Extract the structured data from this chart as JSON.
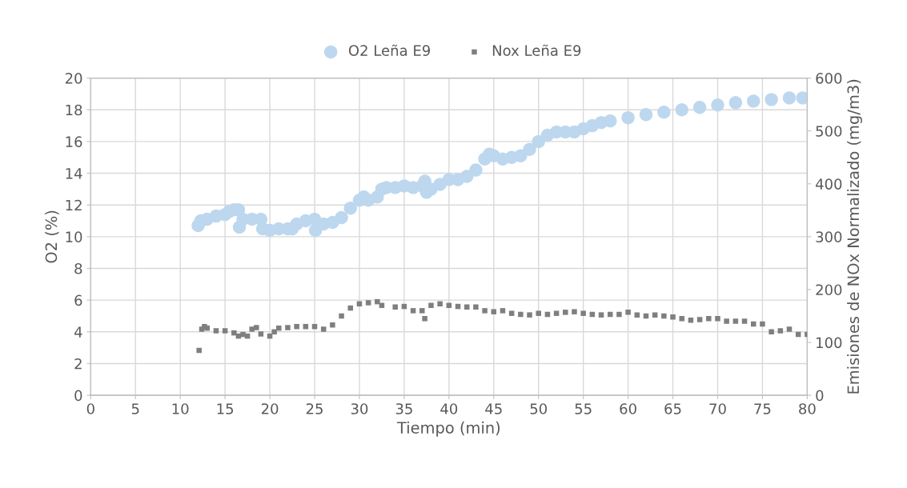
{
  "chart_data": {
    "type": "scatter",
    "xlabel": "Tiempo (min)",
    "ylabel": "O2 (%)",
    "y2label": "Emisiones de NOx Normalizado (mg/m3)",
    "xlim": [
      0,
      80
    ],
    "xticks": [
      0,
      5,
      10,
      15,
      20,
      25,
      30,
      35,
      40,
      45,
      50,
      55,
      60,
      65,
      70,
      75,
      80
    ],
    "ylim": [
      0,
      20
    ],
    "yticks": [
      0,
      2,
      4,
      6,
      8,
      10,
      12,
      14,
      16,
      18,
      20
    ],
    "y2lim": [
      0,
      600
    ],
    "y2ticks": [
      0,
      100,
      200,
      300,
      400,
      500,
      600
    ],
    "grid": true,
    "legend": "top",
    "series": [
      {
        "name": "O2 Leña E9",
        "color": "#bdd7ee",
        "marker": "circle",
        "x": [
          12.0,
          12.3,
          13,
          14,
          15,
          15.5,
          16,
          16.5,
          16.6,
          17,
          18,
          19,
          19.2,
          20,
          21,
          22,
          22.5,
          23,
          24,
          25,
          25.1,
          26,
          27,
          28,
          29,
          30,
          30.5,
          31,
          32,
          32.5,
          33,
          34,
          35,
          36,
          37,
          37.3,
          37.5,
          38,
          39,
          40,
          41,
          42,
          43,
          44,
          44.5,
          45,
          46,
          47,
          48,
          49,
          50,
          51,
          52,
          53,
          54,
          55,
          56,
          57,
          58,
          60,
          62,
          64,
          66,
          68,
          70,
          72,
          74,
          76,
          78,
          79.5
        ],
        "values": [
          10.7,
          11.0,
          11.1,
          11.3,
          11.4,
          11.6,
          11.7,
          11.7,
          10.6,
          11.1,
          11.1,
          11.1,
          10.5,
          10.4,
          10.5,
          10.5,
          10.5,
          10.8,
          11.0,
          11.1,
          10.4,
          10.8,
          10.9,
          11.2,
          11.8,
          12.3,
          12.5,
          12.3,
          12.5,
          13.0,
          13.1,
          13.1,
          13.2,
          13.1,
          13.2,
          13.5,
          12.8,
          13.0,
          13.3,
          13.6,
          13.6,
          13.8,
          14.2,
          14.9,
          15.2,
          15.1,
          14.9,
          15.0,
          15.1,
          15.5,
          16.0,
          16.4,
          16.6,
          16.6,
          16.6,
          16.8,
          17.0,
          17.2,
          17.3,
          17.5,
          17.7,
          17.85,
          18.0,
          18.15,
          18.3,
          18.45,
          18.55,
          18.65,
          18.75,
          18.75
        ]
      },
      {
        "name": "Nox Leña E9",
        "color": "#7f7f7f",
        "marker": "square",
        "axis": "y2",
        "x": [
          12.1,
          12.4,
          12.7,
          13,
          14,
          15,
          16,
          16.5,
          17,
          17.5,
          18,
          18.5,
          19,
          20,
          20.5,
          21,
          22,
          23,
          24,
          25,
          26,
          27,
          28,
          29,
          30,
          31,
          32,
          32.5,
          34,
          35,
          36,
          37,
          37.3,
          38,
          39,
          40,
          41,
          42,
          43,
          44,
          45,
          46,
          47,
          48,
          49,
          50,
          51,
          52,
          53,
          54,
          55,
          56,
          57,
          58,
          59,
          60,
          61,
          62,
          63,
          64,
          65,
          66,
          67,
          68,
          69,
          70,
          71,
          72,
          73,
          74,
          75,
          76,
          77,
          78,
          79,
          80
        ],
        "values": [
          85,
          125,
          130,
          127,
          122,
          122,
          118,
          112,
          115,
          112,
          125,
          128,
          116,
          112,
          120,
          127,
          128,
          130,
          130,
          130,
          125,
          133,
          150,
          165,
          173,
          175,
          177,
          170,
          167,
          168,
          160,
          160,
          145,
          170,
          173,
          170,
          168,
          167,
          167,
          160,
          158,
          160,
          155,
          153,
          152,
          155,
          153,
          155,
          157,
          158,
          155,
          153,
          152,
          153,
          153,
          157,
          152,
          150,
          152,
          150,
          148,
          145,
          142,
          143,
          145,
          145,
          140,
          140,
          140,
          135,
          135,
          120,
          122,
          125,
          115,
          115
        ]
      }
    ]
  }
}
